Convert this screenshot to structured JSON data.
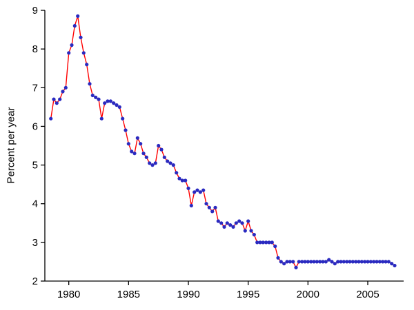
{
  "chart_data": {
    "type": "line",
    "title": "",
    "xlabel": "",
    "ylabel": "Percent per year",
    "x_start": 1978.5,
    "x_step": 0.25,
    "values": [
      6.2,
      6.7,
      6.6,
      6.7,
      6.9,
      7.0,
      7.9,
      8.1,
      8.6,
      8.85,
      8.3,
      7.9,
      7.6,
      7.1,
      6.8,
      6.75,
      6.7,
      6.2,
      6.6,
      6.65,
      6.65,
      6.6,
      6.55,
      6.5,
      6.2,
      5.9,
      5.55,
      5.35,
      5.3,
      5.7,
      5.55,
      5.3,
      5.2,
      5.05,
      5.0,
      5.05,
      5.5,
      5.4,
      5.2,
      5.1,
      5.05,
      5.0,
      4.8,
      4.65,
      4.6,
      4.6,
      4.4,
      3.95,
      4.3,
      4.35,
      4.3,
      4.35,
      4.0,
      3.9,
      3.8,
      3.9,
      3.55,
      3.5,
      3.4,
      3.5,
      3.45,
      3.4,
      3.5,
      3.55,
      3.5,
      3.3,
      3.55,
      3.3,
      3.2,
      3.0,
      3.0,
      3.0,
      3.0,
      3.0,
      3.0,
      2.9,
      2.6,
      2.5,
      2.45,
      2.5,
      2.5,
      2.5,
      2.35,
      2.5,
      2.5,
      2.5,
      2.5,
      2.5,
      2.5,
      2.5,
      2.5,
      2.5,
      2.5,
      2.55,
      2.5,
      2.45,
      2.5,
      2.5,
      2.5,
      2.5,
      2.5,
      2.5,
      2.5,
      2.5,
      2.5,
      2.5,
      2.5,
      2.5,
      2.5,
      2.5,
      2.5,
      2.5,
      2.5,
      2.5,
      2.45,
      2.4
    ],
    "xlim": [
      1978,
      2008
    ],
    "ylim": [
      2,
      9
    ],
    "x_ticks": [
      1980,
      1985,
      1990,
      1995,
      2000,
      2005
    ],
    "y_ticks": [
      2,
      3,
      4,
      5,
      6,
      7,
      8,
      9
    ],
    "grid": false,
    "legend": "none",
    "line_color": "#ff0000",
    "marker_color": "#2a2ac0",
    "axis_color": "#000000"
  }
}
